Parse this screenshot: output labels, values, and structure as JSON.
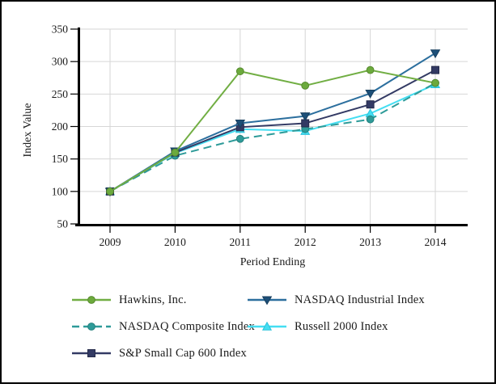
{
  "chart_data": {
    "type": "line",
    "x": [
      "2009",
      "2010",
      "2011",
      "2012",
      "2013",
      "2014"
    ],
    "xlabel": "Period Ending",
    "ylabel": "Index Value",
    "ylim": [
      50,
      350
    ],
    "yticks": [
      50,
      100,
      150,
      200,
      250,
      300,
      350
    ],
    "grid": true,
    "legend_position": "bottom",
    "series": [
      {
        "name": "Hawkins, Inc.",
        "color": "#71AE43",
        "marker": "circle",
        "marker_fill": "#6CAA3D",
        "marker_stroke": "#578A2F",
        "dash": "solid",
        "values": [
          100,
          160,
          285,
          263,
          287,
          267
        ]
      },
      {
        "name": "NASDAQ Industrial Index",
        "color": "#2C6F9E",
        "marker": "triangle-down",
        "marker_fill": "#1D4F78",
        "marker_stroke": "#173E5E",
        "dash": "solid",
        "values": [
          100,
          162,
          205,
          216,
          251,
          313
        ]
      },
      {
        "name": "NASDAQ Composite Index",
        "color": "#2E9B99",
        "marker": "circle",
        "marker_fill": "#2E9B99",
        "marker_stroke": "#23807E",
        "dash": "dashed",
        "values": [
          100,
          155,
          181,
          196,
          211,
          267
        ]
      },
      {
        "name": "Russell 2000 Index",
        "color": "#44DEF2",
        "marker": "triangle-up",
        "marker_fill": "#44DEF2",
        "marker_stroke": "#2CC3DC",
        "dash": "solid",
        "values": [
          100,
          159,
          196,
          193,
          220,
          265
        ]
      },
      {
        "name": "S&P Small Cap 600 Index",
        "color": "#333A64",
        "marker": "square",
        "marker_fill": "#333A64",
        "marker_stroke": "#252B4B",
        "dash": "solid",
        "values": [
          100,
          160,
          199,
          205,
          234,
          287
        ]
      }
    ]
  }
}
